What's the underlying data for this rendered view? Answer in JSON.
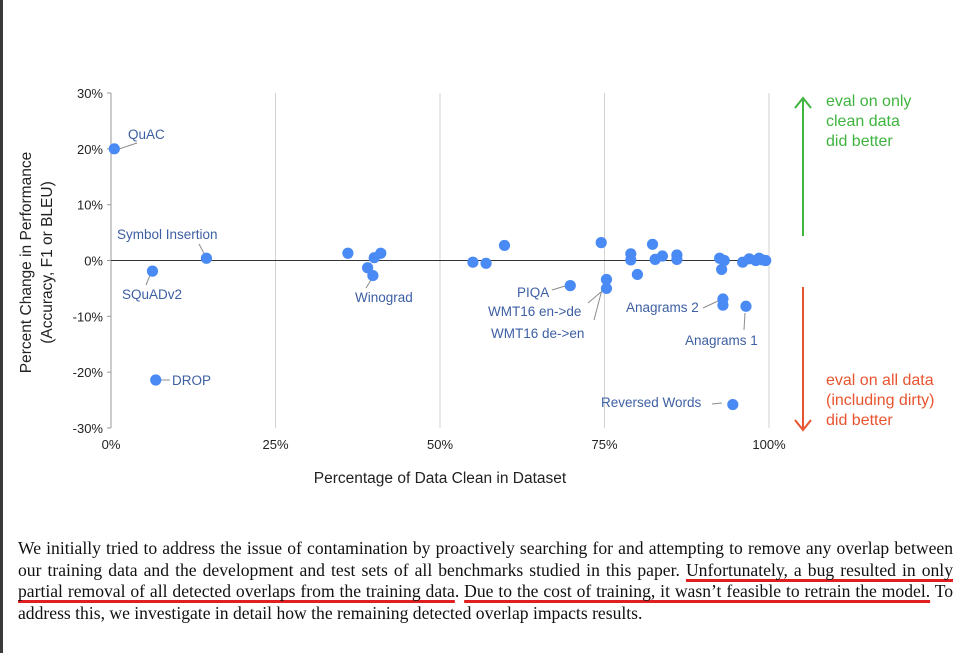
{
  "chart_data": {
    "type": "scatter",
    "title": "",
    "xlabel": "Percentage of Data Clean in Dataset",
    "ylabel": [
      "Percent Change in Performance",
      "(Accuracy, F1 or BLEU)"
    ],
    "xlim": [
      0,
      100
    ],
    "ylim": [
      -30,
      30
    ],
    "x_ticks": [
      "0%",
      "25%",
      "50%",
      "75%",
      "100%"
    ],
    "y_ticks": [
      "30%",
      "20%",
      "10%",
      "0%",
      "-10%",
      "-20%",
      "-30%"
    ],
    "grid": "vertical at 25% intervals",
    "points": [
      {
        "x": 0.5,
        "y": 20
      },
      {
        "x": 6.3,
        "y": -1.9
      },
      {
        "x": 14.5,
        "y": 0.4
      },
      {
        "x": 6.8,
        "y": -21.4
      },
      {
        "x": 36.0,
        "y": 1.3
      },
      {
        "x": 39.0,
        "y": -1.3
      },
      {
        "x": 39.8,
        "y": -2.7
      },
      {
        "x": 40.0,
        "y": 0.5
      },
      {
        "x": 41.0,
        "y": 1.3
      },
      {
        "x": 55.0,
        "y": -0.3
      },
      {
        "x": 57.0,
        "y": -0.5
      },
      {
        "x": 59.8,
        "y": 2.7
      },
      {
        "x": 69.8,
        "y": -4.5
      },
      {
        "x": 74.5,
        "y": 3.2
      },
      {
        "x": 75.3,
        "y": -3.4
      },
      {
        "x": 75.3,
        "y": -5.0
      },
      {
        "x": 79.0,
        "y": 1.2
      },
      {
        "x": 79.0,
        "y": 0.1
      },
      {
        "x": 80.0,
        "y": -2.5
      },
      {
        "x": 82.3,
        "y": 2.9
      },
      {
        "x": 82.7,
        "y": 0.2
      },
      {
        "x": 83.8,
        "y": 0.8
      },
      {
        "x": 86.0,
        "y": 1.0
      },
      {
        "x": 86.0,
        "y": 0.2
      },
      {
        "x": 92.5,
        "y": 0.4
      },
      {
        "x": 92.8,
        "y": -1.6
      },
      {
        "x": 93.0,
        "y": -6.9
      },
      {
        "x": 93.0,
        "y": -8.0
      },
      {
        "x": 93.2,
        "y": 0.0
      },
      {
        "x": 96.0,
        "y": -0.3
      },
      {
        "x": 96.5,
        "y": -8.2
      },
      {
        "x": 97.0,
        "y": 0.3
      },
      {
        "x": 98.0,
        "y": 0.0
      },
      {
        "x": 98.5,
        "y": 0.4
      },
      {
        "x": 99.0,
        "y": 0.1
      },
      {
        "x": 99.5,
        "y": 0.0
      },
      {
        "x": 94.5,
        "y": -25.8
      }
    ],
    "annotations": [
      {
        "text": "QuAC",
        "x": 0.5,
        "y": 20
      },
      {
        "text": "Symbol Insertion",
        "x": 14.5,
        "y": 0.4
      },
      {
        "text": "SQuADv2",
        "x": 6.3,
        "y": -1.9
      },
      {
        "text": "DROP",
        "x": 6.8,
        "y": -21.4
      },
      {
        "text": "Winograd",
        "x": 39.8,
        "y": -2.7
      },
      {
        "text": "PIQA",
        "x": 69.8,
        "y": -4.5
      },
      {
        "text": "WMT16 en->de",
        "x": 75.3,
        "y": -5.0
      },
      {
        "text": "WMT16 de->en",
        "x": 75.3,
        "y": -3.4
      },
      {
        "text": "Anagrams 2",
        "x": 93.0,
        "y": -6.9
      },
      {
        "text": "Anagrams 1",
        "x": 96.5,
        "y": -8.2
      },
      {
        "text": "Reversed Words",
        "x": 94.5,
        "y": -25.8
      }
    ],
    "side_notes": {
      "up": {
        "lines": [
          "eval on only",
          "clean data",
          "did better"
        ],
        "color": "#3fb43f"
      },
      "down": {
        "lines": [
          "eval on all data",
          "(including dirty)",
          "did better"
        ],
        "color": "#e8542f"
      }
    },
    "point_color": "#4a8af4"
  },
  "caption": {
    "plain_1": "We initially tried to address the issue of contamination by proactively searching for and attempting to remove any overlap between our training data and the development and test sets of all benchmarks studied in this paper. ",
    "highlight_1": "Unfortunately, a bug resulted in only partial removal of all detected overlaps from the training data",
    "plain_2": ". ",
    "highlight_2": "Due to the cost of training, it wasn’t feasible to retrain the model.",
    "plain_3": " To address this, we investigate in detail how the remaining detected overlap impacts results."
  },
  "highlight_color": "#e02020"
}
